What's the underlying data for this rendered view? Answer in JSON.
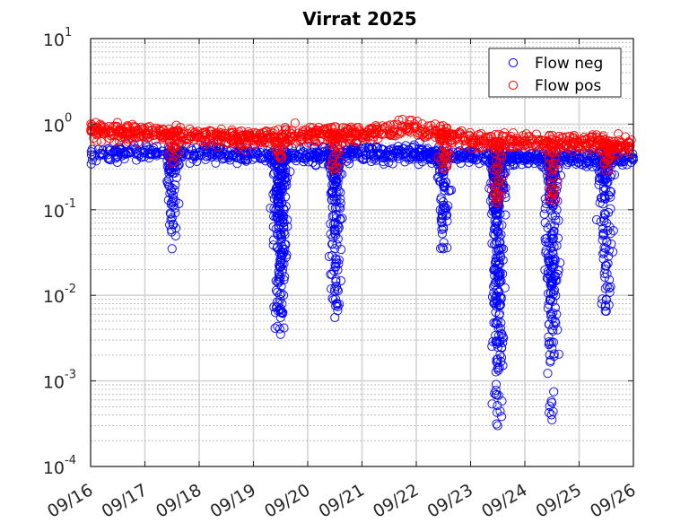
{
  "chart_data": {
    "type": "scatter",
    "title": "Virrat 2025",
    "xlabel": "",
    "ylabel": "",
    "x_scale": "time",
    "y_scale": "log",
    "xlim": [
      "2025-09-16",
      "2025-09-26"
    ],
    "ylim": [
      0.0001,
      10
    ],
    "x_ticks": [
      "09/16",
      "09/17",
      "09/18",
      "09/19",
      "09/20",
      "09/21",
      "09/22",
      "09/23",
      "09/24",
      "09/25",
      "09/26"
    ],
    "y_ticks": [
      {
        "base": "10",
        "exp": "-4"
      },
      {
        "base": "10",
        "exp": "-3"
      },
      {
        "base": "10",
        "exp": "-2"
      },
      {
        "base": "10",
        "exp": "-1"
      },
      {
        "base": "10",
        "exp": "0"
      },
      {
        "base": "10",
        "exp": "1"
      }
    ],
    "grid": true,
    "minor_grid": true,
    "legend_position": "top-right",
    "marker": "open-circle",
    "series": [
      {
        "name": "Flow neg",
        "color": "#0000ff",
        "baseline": [
          {
            "x": "2025-09-16",
            "y": 0.42
          },
          {
            "x": "2025-09-17",
            "y": 0.47
          },
          {
            "x": "2025-09-18",
            "y": 0.46
          },
          {
            "x": "2025-09-19",
            "y": 0.44
          },
          {
            "x": "2025-09-20",
            "y": 0.43
          },
          {
            "x": "2025-09-21",
            "y": 0.46
          },
          {
            "x": "2025-09-22",
            "y": 0.45
          },
          {
            "x": "2025-09-23",
            "y": 0.42
          },
          {
            "x": "2025-09-24",
            "y": 0.41
          },
          {
            "x": "2025-09-25",
            "y": 0.4
          },
          {
            "x": "2025-09-26",
            "y": 0.4
          }
        ],
        "dips": [
          {
            "x": "2025-09-17",
            "y": 0.08
          },
          {
            "x": "2025-09-17",
            "y": 0.035
          },
          {
            "x": "2025-09-19",
            "y": 0.05
          },
          {
            "x": "2025-09-19",
            "y": 0.007
          },
          {
            "x": "2025-09-19",
            "y": 0.0055
          },
          {
            "x": "2025-09-19",
            "y": 0.0035
          },
          {
            "x": "2025-09-20",
            "y": 0.035
          },
          {
            "x": "2025-09-20",
            "y": 0.012
          },
          {
            "x": "2025-09-20",
            "y": 0.0055
          },
          {
            "x": "2025-09-22",
            "y": 0.06
          },
          {
            "x": "2025-09-22",
            "y": 0.035
          },
          {
            "x": "2025-09-23",
            "y": 0.005
          },
          {
            "x": "2025-09-23",
            "y": 0.0018
          },
          {
            "x": "2025-09-23",
            "y": 0.0014
          },
          {
            "x": "2025-09-23",
            "y": 0.0003
          },
          {
            "x": "2025-09-24",
            "y": 0.004
          },
          {
            "x": "2025-09-24",
            "y": 0.0024
          },
          {
            "x": "2025-09-24",
            "y": 0.00035
          },
          {
            "x": "2025-09-25",
            "y": 0.0065
          },
          {
            "x": "2025-09-25",
            "y": 0.009
          }
        ]
      },
      {
        "name": "Flow pos",
        "color": "#ff0000",
        "baseline": [
          {
            "x": "2025-09-16",
            "y": 0.85
          },
          {
            "x": "2025-09-17",
            "y": 0.78
          },
          {
            "x": "2025-09-18",
            "y": 0.72
          },
          {
            "x": "2025-09-19",
            "y": 0.68
          },
          {
            "x": "2025-09-20",
            "y": 0.75
          },
          {
            "x": "2025-09-21",
            "y": 0.78
          },
          {
            "x": "2025-09-22",
            "y": 0.9
          },
          {
            "x": "2025-09-23",
            "y": 0.65
          },
          {
            "x": "2025-09-24",
            "y": 0.6
          },
          {
            "x": "2025-09-25",
            "y": 0.62
          },
          {
            "x": "2025-09-26",
            "y": 0.58
          }
        ],
        "dips": [
          {
            "x": "2025-09-17",
            "y": 0.35
          },
          {
            "x": "2025-09-19",
            "y": 0.4
          },
          {
            "x": "2025-09-20",
            "y": 0.28
          },
          {
            "x": "2025-09-22",
            "y": 0.3
          },
          {
            "x": "2025-09-23",
            "y": 0.12
          },
          {
            "x": "2025-09-24",
            "y": 0.13
          },
          {
            "x": "2025-09-25",
            "y": 0.28
          }
        ]
      }
    ]
  }
}
